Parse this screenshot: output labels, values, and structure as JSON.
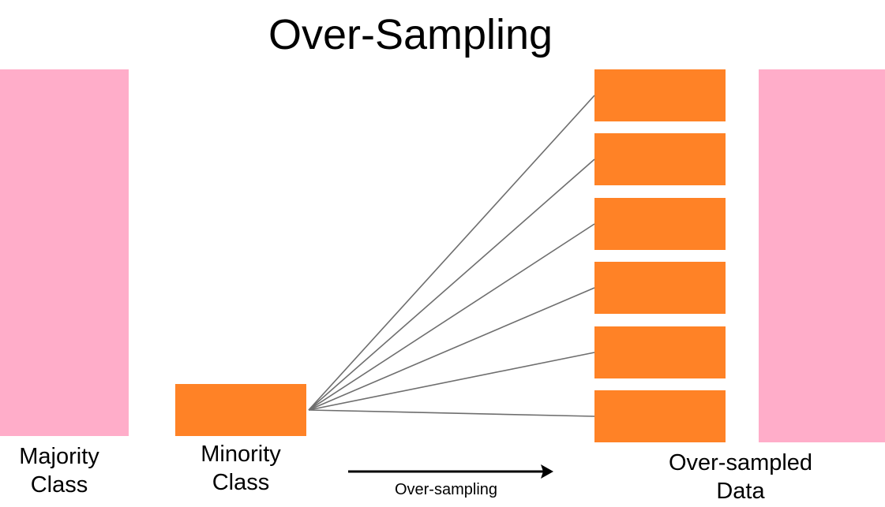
{
  "title": "Over-Sampling",
  "colors": {
    "majority": "#ffadc9",
    "minority": "#ff8226",
    "line": "#6e6e6e",
    "arrow": "#000000"
  },
  "labels": {
    "majority_line1": "Majority",
    "majority_line2": "Class",
    "minority_line1": "Minority",
    "minority_line2": "Class",
    "oversampled_line1": "Over-sampled",
    "oversampled_line2": "Data",
    "arrow": "Over-sampling"
  },
  "copies": [
    1,
    2,
    3,
    4,
    5,
    6
  ]
}
